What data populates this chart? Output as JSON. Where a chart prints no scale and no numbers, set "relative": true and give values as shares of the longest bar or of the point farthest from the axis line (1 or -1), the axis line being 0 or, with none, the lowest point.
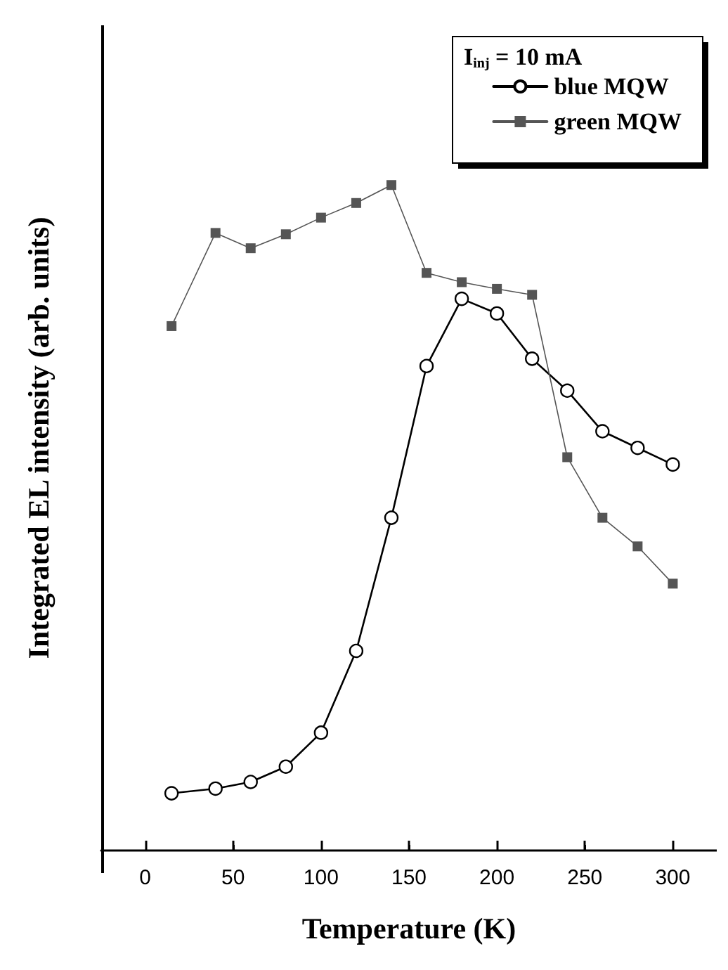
{
  "chart_data": {
    "type": "line",
    "xlabel": "Temperature (K)",
    "ylabel": "Integrated EL intensity (arb. units)",
    "legend_title": "I$_{inj}$ = 10 mA",
    "legend": "top right",
    "relative": true,
    "tick_labels": "x",
    "xlim": [
      -25,
      325
    ],
    "xticks": [
      0,
      50,
      100,
      150,
      200,
      250,
      300
    ],
    "x": [
      15,
      40,
      60,
      80,
      100,
      120,
      140,
      160,
      180,
      200,
      220,
      240,
      260,
      280,
      300
    ],
    "series": [
      {
        "name": "blue MQW",
        "color": "#000000",
        "marker": "circle",
        "values": [
          0.086,
          0.093,
          0.103,
          0.126,
          0.177,
          0.3,
          0.5,
          0.728,
          0.829,
          0.807,
          0.739,
          0.691,
          0.63,
          0.605,
          0.58
        ]
      },
      {
        "name": "green MQW",
        "color": "#555555",
        "marker": "square",
        "values": [
          0.788,
          0.928,
          0.905,
          0.926,
          0.951,
          0.973,
          1,
          0.868,
          0.854,
          0.844,
          0.835,
          0.591,
          0.5,
          0.457,
          0.401
        ]
      }
    ]
  }
}
